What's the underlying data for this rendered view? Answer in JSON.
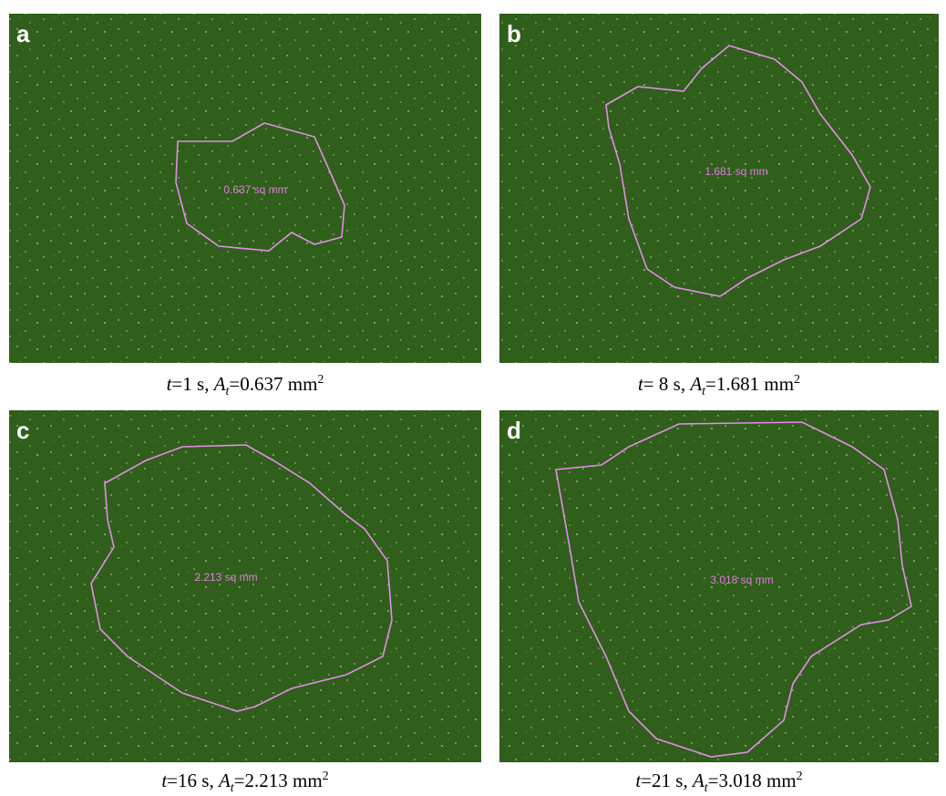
{
  "panels": [
    {
      "letter": "a",
      "image_label": "0.637 sq mm",
      "caption": {
        "time_var": "t",
        "time": "=1 s, ",
        "area_var": "A",
        "area_sub": "t",
        "area": "=0.637 mm",
        "area_sup": "2"
      }
    },
    {
      "letter": "b",
      "image_label": "1.681 sq mm",
      "caption": {
        "time_var": "t",
        "time": "= 8 s, ",
        "area_var": "A",
        "area_sub": "t",
        "area": "=1.681 mm",
        "area_sup": "2"
      }
    },
    {
      "letter": "c",
      "image_label": "2.213 sq mm",
      "caption": {
        "time_var": "t",
        "time": "=16 s, ",
        "area_var": "A",
        "area_sub": "t",
        "area": "=2.213 mm",
        "area_sup": "2"
      }
    },
    {
      "letter": "d",
      "image_label": "3.018 sq mm",
      "caption": {
        "time_var": "t",
        "time": "=21 s, ",
        "area_var": "A",
        "area_sub": "t",
        "area": "=3.018 mm",
        "area_sup": "2"
      }
    }
  ]
}
